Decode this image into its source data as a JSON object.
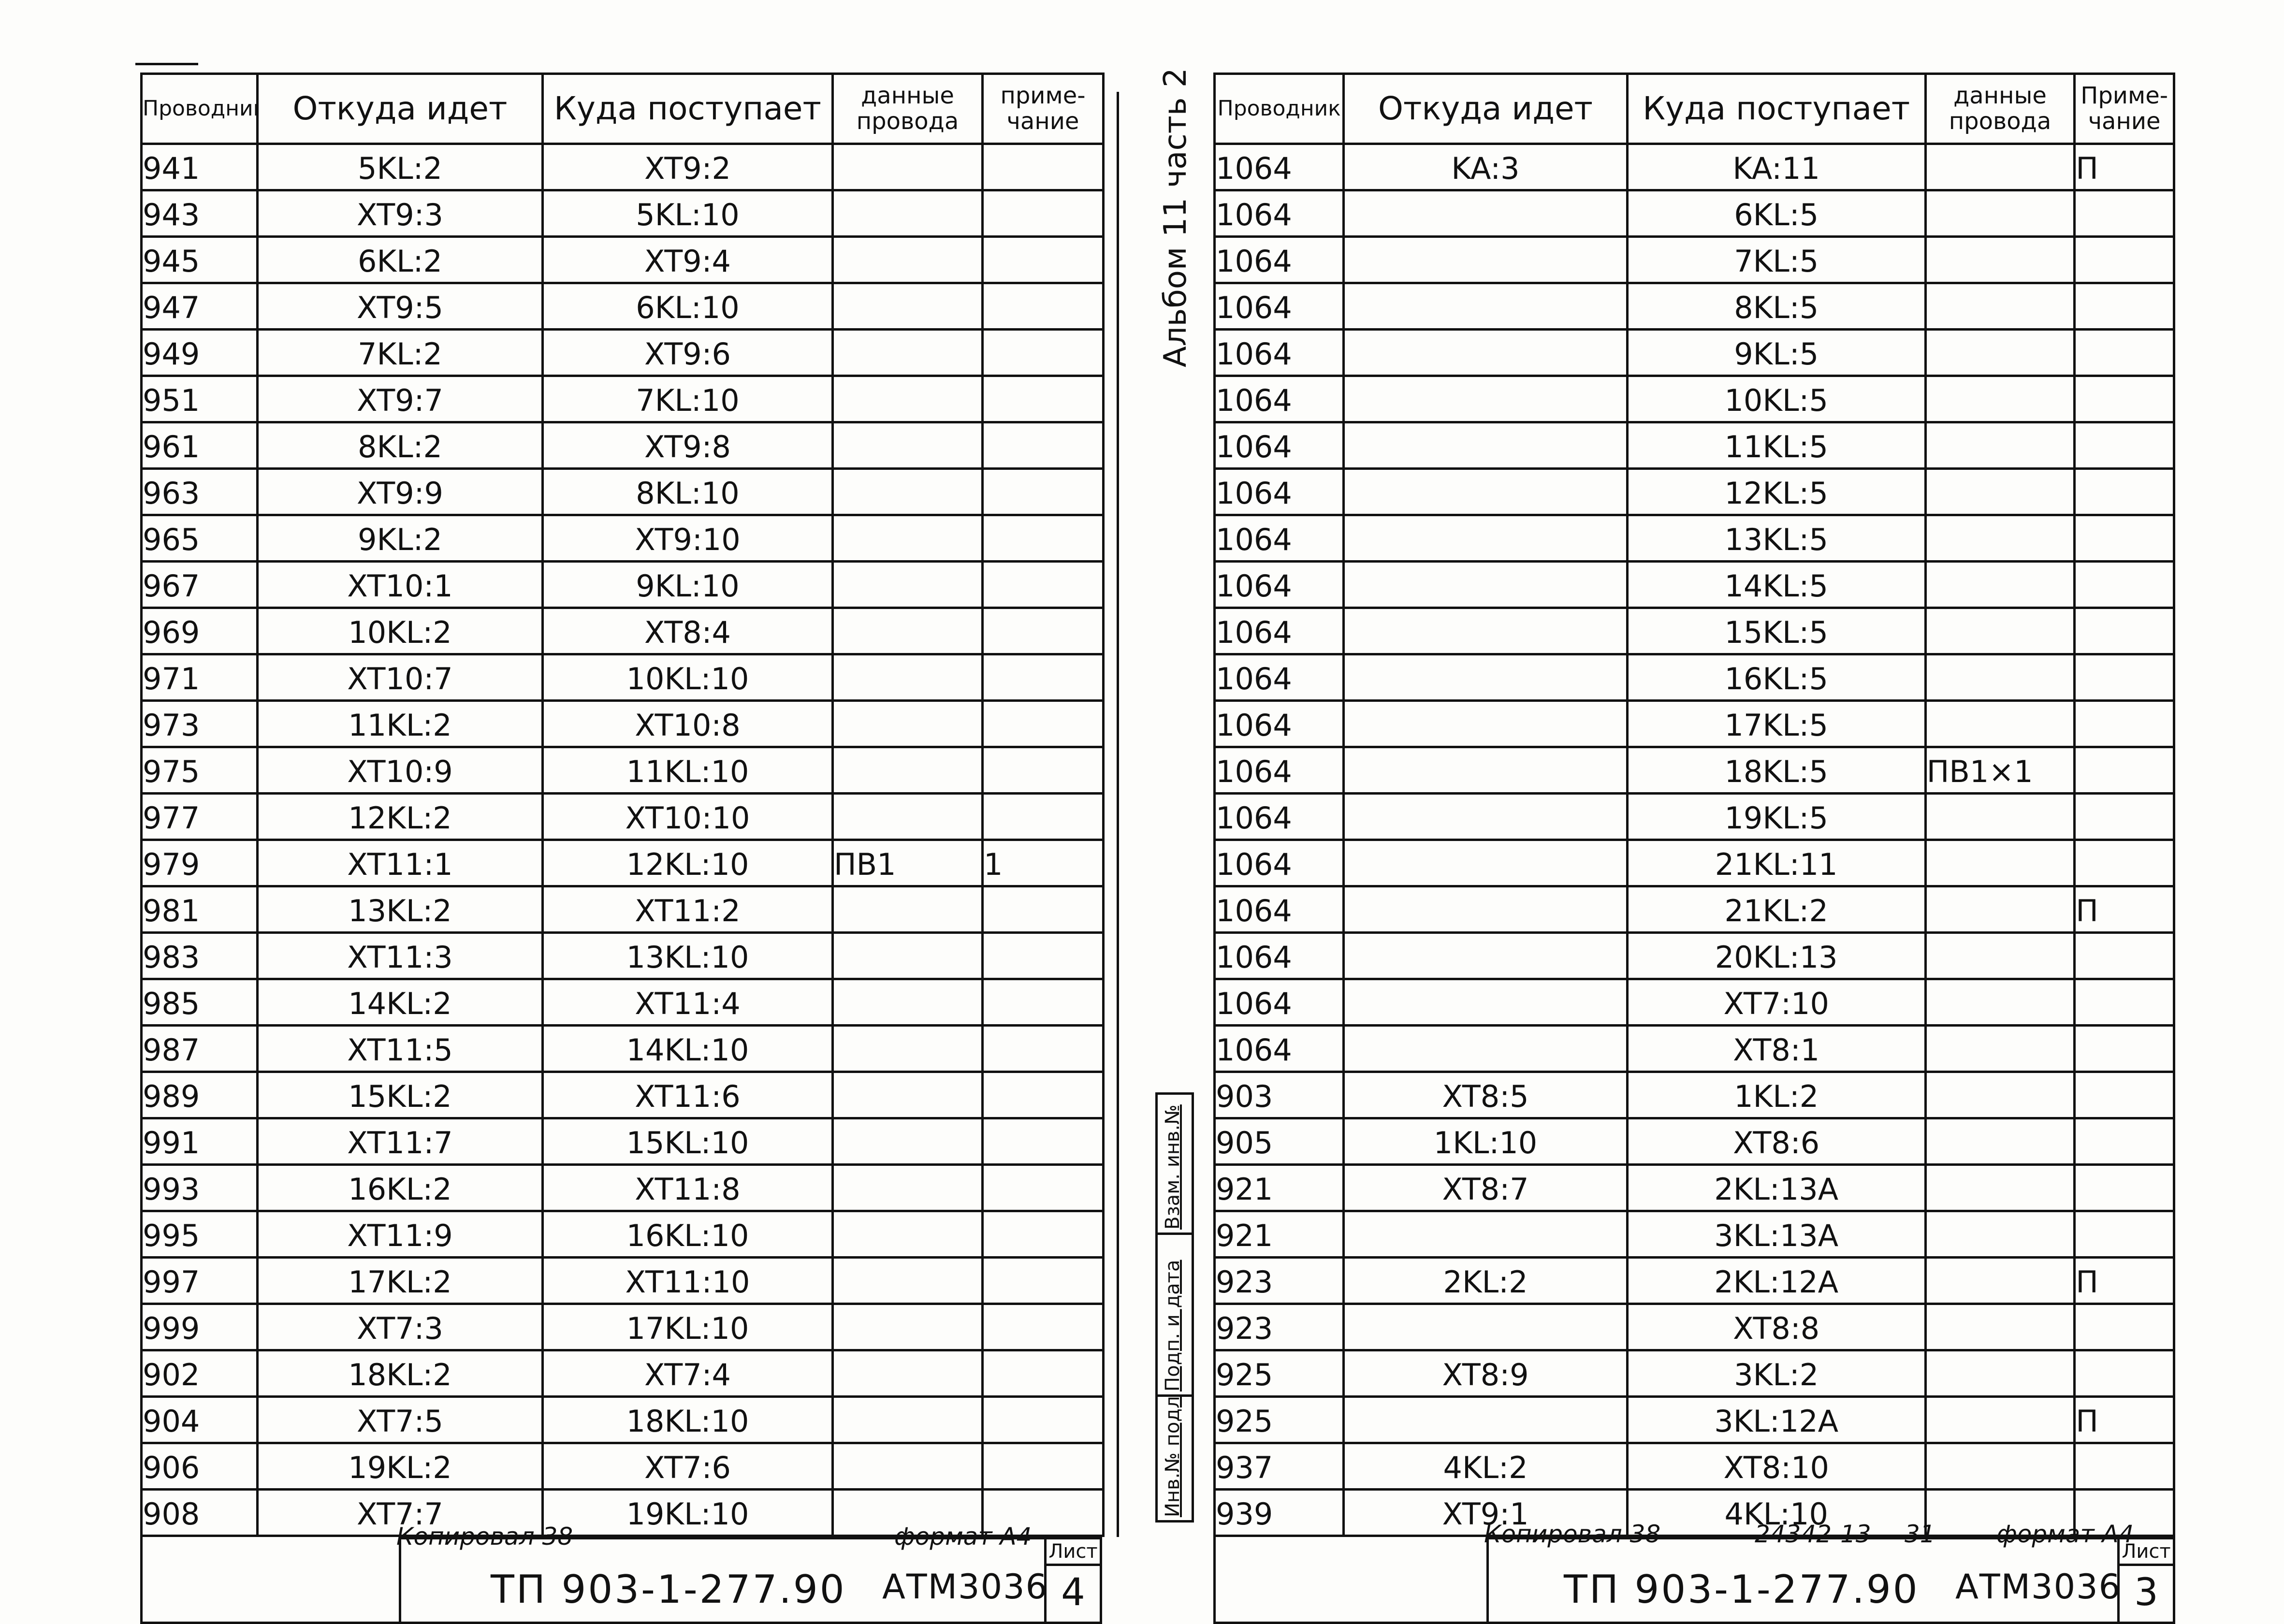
{
  "left": {
    "headers": {
      "wire": "Проводник",
      "from": "Откуда идет",
      "to": "Куда поступает",
      "data": "данные провода",
      "note": "приме- чание"
    },
    "rows": [
      {
        "wire": "941",
        "from": "5KL:2",
        "to": "XT9:2",
        "data": "",
        "note": ""
      },
      {
        "wire": "943",
        "from": "XT9:3",
        "to": "5KL:10",
        "data": "",
        "note": ""
      },
      {
        "wire": "945",
        "from": "6KL:2",
        "to": "XT9:4",
        "data": "",
        "note": ""
      },
      {
        "wire": "947",
        "from": "XT9:5",
        "to": "6KL:10",
        "data": "",
        "note": ""
      },
      {
        "wire": "949",
        "from": "7KL:2",
        "to": "XT9:6",
        "data": "",
        "note": ""
      },
      {
        "wire": "951",
        "from": "XT9:7",
        "to": "7KL:10",
        "data": "",
        "note": ""
      },
      {
        "wire": "961",
        "from": "8KL:2",
        "to": "XT9:8",
        "data": "",
        "note": ""
      },
      {
        "wire": "963",
        "from": "XT9:9",
        "to": "8KL:10",
        "data": "",
        "note": ""
      },
      {
        "wire": "965",
        "from": "9KL:2",
        "to": "XT9:10",
        "data": "",
        "note": ""
      },
      {
        "wire": "967",
        "from": "XT10:1",
        "to": "9KL:10",
        "data": "",
        "note": ""
      },
      {
        "wire": "969",
        "from": "10KL:2",
        "to": "XT8:4",
        "data": "",
        "note": ""
      },
      {
        "wire": "971",
        "from": "XT10:7",
        "to": "10KL:10",
        "data": "",
        "note": ""
      },
      {
        "wire": "973",
        "from": "11KL:2",
        "to": "XT10:8",
        "data": "",
        "note": ""
      },
      {
        "wire": "975",
        "from": "XT10:9",
        "to": "11KL:10",
        "data": "",
        "note": ""
      },
      {
        "wire": "977",
        "from": "12KL:2",
        "to": "XT10:10",
        "data": "",
        "note": ""
      },
      {
        "wire": "979",
        "from": "XT11:1",
        "to": "12KL:10",
        "data": "ПВ1",
        "note": "1"
      },
      {
        "wire": "981",
        "from": "13KL:2",
        "to": "XT11:2",
        "data": "",
        "note": ""
      },
      {
        "wire": "983",
        "from": "XT11:3",
        "to": "13KL:10",
        "data": "",
        "note": ""
      },
      {
        "wire": "985",
        "from": "14KL:2",
        "to": "XT11:4",
        "data": "",
        "note": ""
      },
      {
        "wire": "987",
        "from": "XT11:5",
        "to": "14KL:10",
        "data": "",
        "note": ""
      },
      {
        "wire": "989",
        "from": "15KL:2",
        "to": "XT11:6",
        "data": "",
        "note": ""
      },
      {
        "wire": "991",
        "from": "XT11:7",
        "to": "15KL:10",
        "data": "",
        "note": ""
      },
      {
        "wire": "993",
        "from": "16KL:2",
        "to": "XT11:8",
        "data": "",
        "note": ""
      },
      {
        "wire": "995",
        "from": "XT11:9",
        "to": "16KL:10",
        "data": "",
        "note": ""
      },
      {
        "wire": "997",
        "from": "17KL:2",
        "to": "XT11:10",
        "data": "",
        "note": ""
      },
      {
        "wire": "999",
        "from": "XT7:3",
        "to": "17KL:10",
        "data": "",
        "note": ""
      },
      {
        "wire": "902",
        "from": "18KL:2",
        "to": "XT7:4",
        "data": "",
        "note": ""
      },
      {
        "wire": "904",
        "from": "XT7:5",
        "to": "18KL:10",
        "data": "",
        "note": ""
      },
      {
        "wire": "906",
        "from": "19KL:2",
        "to": "XT7:6",
        "data": "",
        "note": ""
      },
      {
        "wire": "908",
        "from": "XT7:7",
        "to": "19KL:10",
        "data": "",
        "note": ""
      }
    ],
    "stamp": {
      "code": "ТП 903-1-277.90",
      "atm": "АТМ3036",
      "sheet_label": "Лист",
      "sheet_no": "4"
    },
    "below": {
      "copied": "Копировал 38",
      "format": "формат А4"
    }
  },
  "right": {
    "headers": {
      "wire": "Проводник",
      "from": "Откуда идет",
      "to": "Куда поступает",
      "data": "данные провода",
      "note": "Приме- чание"
    },
    "rows": [
      {
        "wire": "1064",
        "from": "KA:3",
        "to": "KA:11",
        "data": "",
        "note": "П"
      },
      {
        "wire": "1064",
        "from": "",
        "to": "6KL:5",
        "data": "",
        "note": ""
      },
      {
        "wire": "1064",
        "from": "",
        "to": "7KL:5",
        "data": "",
        "note": ""
      },
      {
        "wire": "1064",
        "from": "",
        "to": "8KL:5",
        "data": "",
        "note": ""
      },
      {
        "wire": "1064",
        "from": "",
        "to": "9KL:5",
        "data": "",
        "note": ""
      },
      {
        "wire": "1064",
        "from": "",
        "to": "10KL:5",
        "data": "",
        "note": ""
      },
      {
        "wire": "1064",
        "from": "",
        "to": "11KL:5",
        "data": "",
        "note": ""
      },
      {
        "wire": "1064",
        "from": "",
        "to": "12KL:5",
        "data": "",
        "note": ""
      },
      {
        "wire": "1064",
        "from": "",
        "to": "13KL:5",
        "data": "",
        "note": ""
      },
      {
        "wire": "1064",
        "from": "",
        "to": "14KL:5",
        "data": "",
        "note": ""
      },
      {
        "wire": "1064",
        "from": "",
        "to": "15KL:5",
        "data": "",
        "note": ""
      },
      {
        "wire": "1064",
        "from": "",
        "to": "16KL:5",
        "data": "",
        "note": ""
      },
      {
        "wire": "1064",
        "from": "",
        "to": "17KL:5",
        "data": "",
        "note": ""
      },
      {
        "wire": "1064",
        "from": "",
        "to": "18KL:5",
        "data": "ПВ1×1",
        "note": ""
      },
      {
        "wire": "1064",
        "from": "",
        "to": "19KL:5",
        "data": "",
        "note": ""
      },
      {
        "wire": "1064",
        "from": "",
        "to": "21KL:11",
        "data": "",
        "note": ""
      },
      {
        "wire": "1064",
        "from": "",
        "to": "21KL:2",
        "data": "",
        "note": "П"
      },
      {
        "wire": "1064",
        "from": "",
        "to": "20KL:13",
        "data": "",
        "note": ""
      },
      {
        "wire": "1064",
        "from": "",
        "to": "XT7:10",
        "data": "",
        "note": ""
      },
      {
        "wire": "1064",
        "from": "",
        "to": "XT8:1",
        "data": "",
        "note": ""
      },
      {
        "wire": "903",
        "from": "XT8:5",
        "to": "1KL:2",
        "data": "",
        "note": ""
      },
      {
        "wire": "905",
        "from": "1KL:10",
        "to": "XT8:6",
        "data": "",
        "note": ""
      },
      {
        "wire": "921",
        "from": "XT8:7",
        "to": "2KL:13A",
        "data": "",
        "note": ""
      },
      {
        "wire": "921",
        "from": "",
        "to": "3KL:13A",
        "data": "",
        "note": ""
      },
      {
        "wire": "923",
        "from": "2KL:2",
        "to": "2KL:12A",
        "data": "",
        "note": "П"
      },
      {
        "wire": "923",
        "from": "",
        "to": "XT8:8",
        "data": "",
        "note": ""
      },
      {
        "wire": "925",
        "from": "XT8:9",
        "to": "3KL:2",
        "data": "",
        "note": ""
      },
      {
        "wire": "925",
        "from": "",
        "to": "3KL:12A",
        "data": "",
        "note": "П"
      },
      {
        "wire": "937",
        "from": "4KL:2",
        "to": "XT8:10",
        "data": "",
        "note": ""
      },
      {
        "wire": "939",
        "from": "XT9:1",
        "to": "4KL:10",
        "data": "",
        "note": ""
      }
    ],
    "stamp": {
      "code": "ТП 903-1-277.90",
      "atm": "АТМ3036",
      "sheet_label": "Лист",
      "sheet_no": "3"
    },
    "below": {
      "copied": "Копировал 38",
      "number": "24342-13",
      "page": "31",
      "format": "формат А4"
    }
  },
  "side": {
    "album": "Альбом 11 часть 2",
    "box_cells": [
      "Инв.№ подл.",
      "Подп. и дата",
      "Взам. инв.№"
    ]
  }
}
